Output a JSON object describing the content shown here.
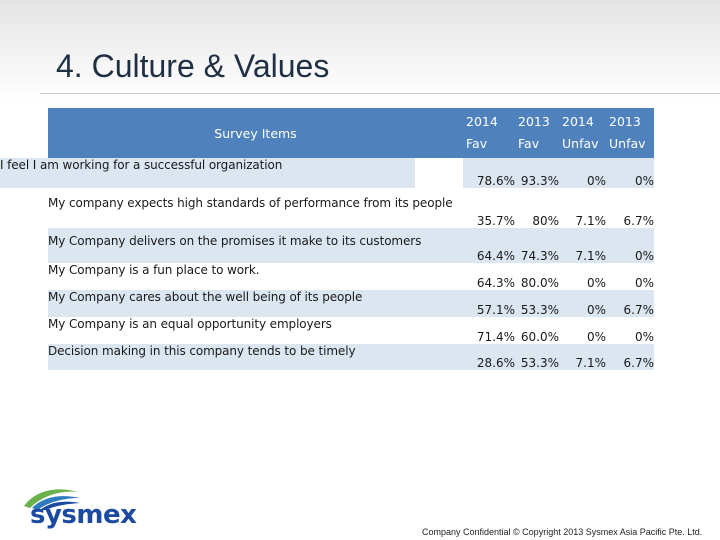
{
  "slide": {
    "title": "4. Culture & Values",
    "footer": "Company Confidential © Copyright 2013 Sysmex Asia Pacific Pte. Ltd.",
    "logo_text": "sysmex",
    "logo_icon": "sysmex-swirl-logo-icon"
  },
  "table": {
    "item_header": "Survey Items",
    "column_headers": [
      {
        "year": "2014",
        "type": "Fav"
      },
      {
        "year": "2013",
        "type": "Fav"
      },
      {
        "year": "2014",
        "type": "Unfav"
      },
      {
        "year": "2013",
        "type": "Unfav"
      }
    ],
    "rows": [
      {
        "item": "I feel I am working for a successful organization",
        "values": [
          "78.6%",
          "93.3%",
          "0%",
          "0%"
        ]
      },
      {
        "item": "My company expects high standards of performance from its people",
        "values": [
          "35.7%",
          "80%",
          "7.1%",
          "6.7%"
        ]
      },
      {
        "item": "My Company delivers on the promises it make to its customers",
        "values": [
          "64.4%",
          "74.3%",
          "7.1%",
          "0%"
        ]
      },
      {
        "item": "My Company is a fun place to work.",
        "values": [
          "64.3%",
          "80.0%",
          "0%",
          "0%"
        ]
      },
      {
        "item": "My Company cares about the well being of its people",
        "values": [
          "57.1%",
          "53.3%",
          "0%",
          "6.7%"
        ]
      },
      {
        "item": "My Company is an equal opportunity employers",
        "values": [
          "71.4%",
          "60.0%",
          "0%",
          "0%"
        ]
      },
      {
        "item": "Decision making in this company tends to be timely",
        "values": [
          "28.6%",
          "53.3%",
          "7.1%",
          "6.7%"
        ]
      }
    ]
  },
  "colors": {
    "header_fill": "#4f81bd",
    "band_fill": "#dce6f1",
    "logo_blue": "#1b4aa0",
    "logo_green": "#6ab04c"
  }
}
